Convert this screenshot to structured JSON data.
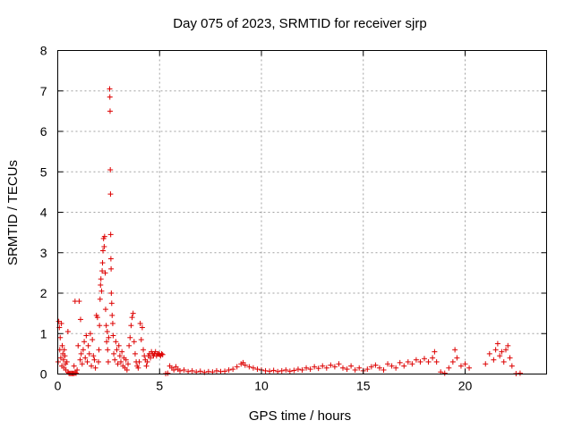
{
  "chart_data": {
    "type": "scatter",
    "title": "Day 075 of 2023, SRMTID for receiver sjrp",
    "xlabel": "GPS time / hours",
    "ylabel": "SRMTID / TECUs",
    "xlim": [
      0,
      24
    ],
    "ylim": [
      0,
      8
    ],
    "xticks": [
      0,
      5,
      10,
      15,
      20
    ],
    "yticks": [
      0,
      1,
      2,
      3,
      4,
      5,
      6,
      7,
      8
    ],
    "grid": true,
    "marker": "plus",
    "color": "#dd0000",
    "series": [
      {
        "points": [
          [
            0.02,
            0.3
          ],
          [
            0.05,
            1.3
          ],
          [
            0.08,
            1.15
          ],
          [
            0.1,
            0.6
          ],
          [
            0.12,
            0.9
          ],
          [
            0.15,
            0.4
          ],
          [
            0.18,
            1.25
          ],
          [
            0.2,
            0.2
          ],
          [
            0.22,
            0.7
          ],
          [
            0.25,
            0.5
          ],
          [
            0.28,
            0.35
          ],
          [
            0.3,
            0.15
          ],
          [
            0.32,
            0.6
          ],
          [
            0.35,
            0.45
          ],
          [
            0.38,
            0.25
          ],
          [
            0.4,
            0.1
          ],
          [
            0.45,
            0.3
          ],
          [
            0.5,
            0.05
          ],
          [
            0.55,
            0.02
          ],
          [
            0.6,
            0.01
          ],
          [
            0.65,
            0.02
          ],
          [
            0.7,
            0.01
          ],
          [
            0.75,
            0.02
          ],
          [
            0.8,
            0.01
          ],
          [
            0.85,
            0.03
          ],
          [
            0.9,
            0.02
          ],
          [
            0.5,
            1.05
          ],
          [
            0.8,
            0.2
          ],
          [
            0.85,
            1.8
          ],
          [
            0.95,
            0.1
          ],
          [
            1.0,
            0.7
          ],
          [
            1.05,
            1.8
          ],
          [
            1.1,
            0.35
          ],
          [
            1.12,
            1.35
          ],
          [
            1.15,
            0.5
          ],
          [
            1.2,
            0.25
          ],
          [
            1.25,
            0.6
          ],
          [
            1.3,
            0.8
          ],
          [
            1.35,
            0.4
          ],
          [
            1.4,
            0.95
          ],
          [
            1.45,
            0.3
          ],
          [
            1.5,
            0.7
          ],
          [
            1.55,
            0.5
          ],
          [
            1.6,
            1.0
          ],
          [
            1.65,
            0.2
          ],
          [
            1.7,
            0.85
          ],
          [
            1.75,
            0.45
          ],
          [
            1.8,
            0.35
          ],
          [
            1.85,
            0.15
          ],
          [
            1.9,
            1.45
          ],
          [
            1.95,
            1.4
          ],
          [
            2.0,
            0.3
          ],
          [
            2.02,
            0.6
          ],
          [
            2.05,
            1.2
          ],
          [
            2.08,
            1.85
          ],
          [
            2.1,
            2.2
          ],
          [
            2.12,
            2.35
          ],
          [
            2.15,
            2.05
          ],
          [
            2.18,
            2.55
          ],
          [
            2.2,
            2.75
          ],
          [
            2.22,
            3.05
          ],
          [
            2.25,
            3.35
          ],
          [
            2.28,
            3.15
          ],
          [
            2.3,
            3.4
          ],
          [
            2.33,
            2.5
          ],
          [
            2.35,
            1.6
          ],
          [
            2.38,
            1.2
          ],
          [
            2.4,
            0.8
          ],
          [
            2.43,
            1.05
          ],
          [
            2.45,
            0.6
          ],
          [
            2.48,
            0.3
          ],
          [
            2.5,
            0.9
          ],
          [
            2.55,
            7.05
          ],
          [
            2.56,
            6.85
          ],
          [
            2.57,
            6.5
          ],
          [
            2.58,
            5.05
          ],
          [
            2.59,
            4.45
          ],
          [
            2.6,
            3.45
          ],
          [
            2.61,
            2.85
          ],
          [
            2.62,
            2.6
          ],
          [
            2.63,
            2.0
          ],
          [
            2.65,
            1.75
          ],
          [
            2.67,
            1.45
          ],
          [
            2.7,
            1.25
          ],
          [
            2.72,
            0.95
          ],
          [
            2.75,
            0.5
          ],
          [
            2.8,
            0.35
          ],
          [
            2.85,
            0.8
          ],
          [
            2.9,
            0.6
          ],
          [
            2.95,
            0.25
          ],
          [
            3.0,
            0.7
          ],
          [
            3.05,
            0.45
          ],
          [
            3.1,
            0.3
          ],
          [
            3.15,
            0.55
          ],
          [
            3.2,
            0.2
          ],
          [
            3.25,
            0.4
          ],
          [
            3.3,
            0.15
          ],
          [
            3.35,
            0.35
          ],
          [
            3.4,
            0.1
          ],
          [
            3.45,
            0.25
          ],
          [
            3.5,
            0.7
          ],
          [
            3.55,
            0.9
          ],
          [
            3.6,
            1.2
          ],
          [
            3.65,
            1.4
          ],
          [
            3.7,
            1.5
          ],
          [
            3.75,
            0.8
          ],
          [
            3.8,
            0.5
          ],
          [
            3.85,
            0.3
          ],
          [
            3.9,
            0.2
          ],
          [
            3.95,
            0.15
          ],
          [
            4.0,
            0.3
          ],
          [
            4.05,
            1.25
          ],
          [
            4.1,
            0.85
          ],
          [
            4.15,
            1.15
          ],
          [
            4.2,
            0.6
          ],
          [
            4.25,
            0.45
          ],
          [
            4.3,
            0.35
          ],
          [
            4.35,
            0.2
          ],
          [
            4.4,
            0.3
          ],
          [
            4.45,
            0.45
          ],
          [
            4.5,
            0.5
          ],
          [
            4.55,
            0.4
          ],
          [
            4.6,
            0.55
          ],
          [
            4.65,
            0.5
          ],
          [
            4.7,
            0.45
          ],
          [
            4.75,
            0.5
          ],
          [
            4.8,
            0.55
          ],
          [
            4.85,
            0.45
          ],
          [
            4.9,
            0.5
          ],
          [
            4.95,
            0.5
          ],
          [
            5.0,
            0.48
          ],
          [
            5.05,
            0.45
          ],
          [
            5.1,
            0.5
          ],
          [
            5.15,
            0.48
          ],
          [
            5.3,
            0.01
          ],
          [
            5.4,
            0.02
          ],
          [
            5.5,
            0.2
          ],
          [
            5.6,
            0.15
          ],
          [
            5.7,
            0.1
          ],
          [
            5.8,
            0.18
          ],
          [
            5.9,
            0.12
          ],
          [
            6.0,
            0.08
          ],
          [
            6.2,
            0.1
          ],
          [
            6.4,
            0.06
          ],
          [
            6.6,
            0.08
          ],
          [
            6.8,
            0.05
          ],
          [
            7.0,
            0.07
          ],
          [
            7.2,
            0.04
          ],
          [
            7.4,
            0.06
          ],
          [
            7.6,
            0.05
          ],
          [
            7.8,
            0.08
          ],
          [
            8.0,
            0.06
          ],
          [
            8.2,
            0.07
          ],
          [
            8.4,
            0.1
          ],
          [
            8.6,
            0.12
          ],
          [
            8.8,
            0.18
          ],
          [
            9.0,
            0.25
          ],
          [
            9.1,
            0.28
          ],
          [
            9.2,
            0.22
          ],
          [
            9.4,
            0.18
          ],
          [
            9.6,
            0.15
          ],
          [
            9.8,
            0.12
          ],
          [
            10.0,
            0.1
          ],
          [
            10.2,
            0.08
          ],
          [
            10.4,
            0.07
          ],
          [
            10.6,
            0.09
          ],
          [
            10.8,
            0.06
          ],
          [
            11.0,
            0.08
          ],
          [
            11.2,
            0.1
          ],
          [
            11.4,
            0.07
          ],
          [
            11.6,
            0.09
          ],
          [
            11.8,
            0.12
          ],
          [
            12.0,
            0.1
          ],
          [
            12.2,
            0.15
          ],
          [
            12.4,
            0.12
          ],
          [
            12.6,
            0.18
          ],
          [
            12.8,
            0.14
          ],
          [
            13.0,
            0.2
          ],
          [
            13.2,
            0.15
          ],
          [
            13.4,
            0.22
          ],
          [
            13.6,
            0.18
          ],
          [
            13.8,
            0.25
          ],
          [
            14.0,
            0.15
          ],
          [
            14.2,
            0.12
          ],
          [
            14.4,
            0.2
          ],
          [
            14.6,
            0.1
          ],
          [
            14.8,
            0.15
          ],
          [
            15.0,
            0.08
          ],
          [
            15.2,
            0.12
          ],
          [
            15.4,
            0.18
          ],
          [
            15.6,
            0.22
          ],
          [
            15.8,
            0.15
          ],
          [
            16.0,
            0.1
          ],
          [
            16.2,
            0.25
          ],
          [
            16.4,
            0.2
          ],
          [
            16.6,
            0.15
          ],
          [
            16.8,
            0.28
          ],
          [
            17.0,
            0.2
          ],
          [
            17.2,
            0.3
          ],
          [
            17.4,
            0.25
          ],
          [
            17.6,
            0.35
          ],
          [
            17.8,
            0.3
          ],
          [
            18.0,
            0.38
          ],
          [
            18.2,
            0.3
          ],
          [
            18.4,
            0.4
          ],
          [
            18.5,
            0.55
          ],
          [
            18.6,
            0.3
          ],
          [
            18.8,
            0.05
          ],
          [
            19.0,
            0.02
          ],
          [
            19.2,
            0.15
          ],
          [
            19.4,
            0.3
          ],
          [
            19.5,
            0.6
          ],
          [
            19.6,
            0.4
          ],
          [
            19.8,
            0.2
          ],
          [
            20.0,
            0.25
          ],
          [
            20.2,
            0.15
          ],
          [
            21.0,
            0.25
          ],
          [
            21.2,
            0.5
          ],
          [
            21.4,
            0.35
          ],
          [
            21.5,
            0.6
          ],
          [
            21.6,
            0.75
          ],
          [
            21.7,
            0.45
          ],
          [
            21.8,
            0.55
          ],
          [
            21.9,
            0.3
          ],
          [
            22.0,
            0.6
          ],
          [
            22.1,
            0.7
          ],
          [
            22.2,
            0.4
          ],
          [
            22.3,
            0.2
          ],
          [
            22.5,
            0.01
          ],
          [
            22.7,
            0.02
          ]
        ]
      }
    ]
  }
}
